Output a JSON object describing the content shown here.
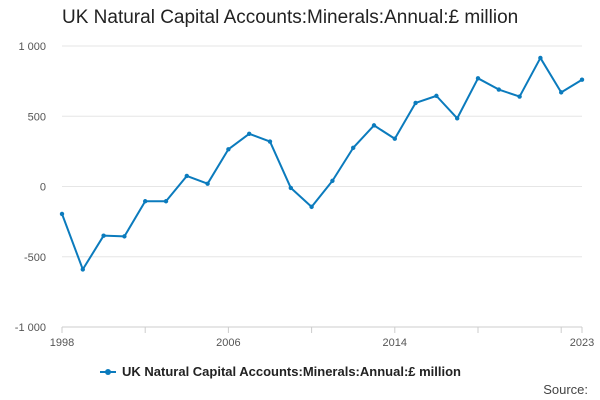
{
  "chart_data": {
    "type": "line",
    "title": "UK Natural Capital Accounts:Minerals:Annual:£ million",
    "xlabel": "",
    "ylabel": "",
    "x": [
      1998,
      1999,
      2000,
      2001,
      2002,
      2003,
      2004,
      2005,
      2006,
      2007,
      2008,
      2009,
      2010,
      2011,
      2012,
      2013,
      2014,
      2015,
      2016,
      2017,
      2018,
      2019,
      2020,
      2021,
      2022,
      2023
    ],
    "series": [
      {
        "name": "UK Natural Capital Accounts:Minerals:Annual:£ million",
        "values": [
          -195,
          -590,
          -350,
          -355,
          -105,
          -105,
          75,
          20,
          265,
          375,
          320,
          -10,
          -145,
          40,
          275,
          435,
          340,
          595,
          645,
          485,
          770,
          690,
          640,
          915,
          670,
          760
        ]
      }
    ],
    "xlim": [
      1998,
      2023
    ],
    "ylim": [
      -1000,
      1000
    ],
    "y_ticks": [
      {
        "value": 1000,
        "label": "1 000"
      },
      {
        "value": 500,
        "label": "500"
      },
      {
        "value": 0,
        "label": "0"
      },
      {
        "value": -500,
        "label": "-500"
      },
      {
        "value": -1000,
        "label": "-1 000"
      }
    ],
    "x_ticks": [
      {
        "value": 1998,
        "label": "1998"
      },
      {
        "value": 2006,
        "label": "2006"
      },
      {
        "value": 2014,
        "label": "2014"
      },
      {
        "value": 2023,
        "label": "2023"
      }
    ],
    "grid": true,
    "legend_position": "bottom",
    "line_color": "#0b7bbd",
    "grid_color": "#e6e6e6"
  },
  "footer": {
    "source_label": "Source:"
  }
}
